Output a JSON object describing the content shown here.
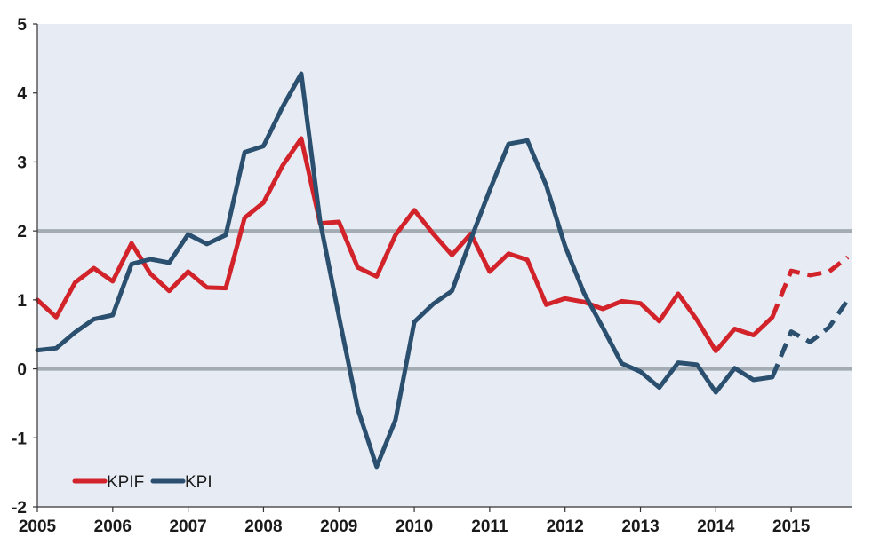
{
  "chart_data": {
    "type": "line",
    "title": "",
    "xlabel": "",
    "ylabel": "",
    "xlim": [
      2005,
      2015.8
    ],
    "ylim": [
      -2,
      5
    ],
    "x_ticks": [
      "2005",
      "2006",
      "2007",
      "2008",
      "2009",
      "2010",
      "2011",
      "2012",
      "2013",
      "2014",
      "2015"
    ],
    "y_ticks": [
      "5",
      "4",
      "3",
      "2",
      "1",
      "0",
      "-1",
      "-2"
    ],
    "reference_lines": [
      0,
      2
    ],
    "background_color": "#e6ebf4",
    "legend": {
      "placement": "bottom-left"
    },
    "series": [
      {
        "name": "KPIF",
        "color": "#d2232a",
        "values": [
          [
            2005.0,
            1.0
          ],
          [
            2005.25,
            0.75
          ],
          [
            2005.5,
            1.25
          ],
          [
            2005.75,
            1.46
          ],
          [
            2006.0,
            1.27
          ],
          [
            2006.25,
            1.82
          ],
          [
            2006.5,
            1.38
          ],
          [
            2006.75,
            1.13
          ],
          [
            2007.0,
            1.41
          ],
          [
            2007.25,
            1.18
          ],
          [
            2007.5,
            1.17
          ],
          [
            2007.75,
            2.19
          ],
          [
            2008.0,
            2.41
          ],
          [
            2008.25,
            2.94
          ],
          [
            2008.5,
            3.34
          ],
          [
            2008.75,
            2.11
          ],
          [
            2009.0,
            2.13
          ],
          [
            2009.25,
            1.47
          ],
          [
            2009.5,
            1.34
          ],
          [
            2009.75,
            1.94
          ],
          [
            2010.0,
            2.3
          ],
          [
            2010.25,
            1.96
          ],
          [
            2010.5,
            1.65
          ],
          [
            2010.75,
            1.96
          ],
          [
            2011.0,
            1.41
          ],
          [
            2011.25,
            1.67
          ],
          [
            2011.5,
            1.58
          ],
          [
            2011.75,
            0.93
          ],
          [
            2012.0,
            1.02
          ],
          [
            2012.25,
            0.97
          ],
          [
            2012.5,
            0.87
          ],
          [
            2012.75,
            0.98
          ],
          [
            2013.0,
            0.95
          ],
          [
            2013.25,
            0.69
          ],
          [
            2013.5,
            1.09
          ],
          [
            2013.75,
            0.71
          ],
          [
            2014.0,
            0.26
          ],
          [
            2014.25,
            0.58
          ],
          [
            2014.5,
            0.49
          ],
          [
            2014.75,
            0.75
          ]
        ],
        "forecast": [
          [
            2014.75,
            0.75
          ],
          [
            2015.0,
            1.42
          ],
          [
            2015.25,
            1.36
          ],
          [
            2015.5,
            1.41
          ],
          [
            2015.75,
            1.62
          ]
        ]
      },
      {
        "name": "KPI",
        "color": "#2b4f6e",
        "values": [
          [
            2005.0,
            0.27
          ],
          [
            2005.25,
            0.3
          ],
          [
            2005.5,
            0.53
          ],
          [
            2005.75,
            0.72
          ],
          [
            2006.0,
            0.78
          ],
          [
            2006.25,
            1.52
          ],
          [
            2006.5,
            1.59
          ],
          [
            2006.75,
            1.54
          ],
          [
            2007.0,
            1.95
          ],
          [
            2007.25,
            1.81
          ],
          [
            2007.5,
            1.94
          ],
          [
            2007.75,
            3.14
          ],
          [
            2008.0,
            3.23
          ],
          [
            2008.25,
            3.79
          ],
          [
            2008.5,
            4.28
          ],
          [
            2008.75,
            2.14
          ],
          [
            2009.0,
            0.76
          ],
          [
            2009.25,
            -0.58
          ],
          [
            2009.5,
            -1.42
          ],
          [
            2009.75,
            -0.74
          ],
          [
            2010.0,
            0.68
          ],
          [
            2010.25,
            0.94
          ],
          [
            2010.5,
            1.13
          ],
          [
            2010.75,
            1.88
          ],
          [
            2011.0,
            2.59
          ],
          [
            2011.25,
            3.26
          ],
          [
            2011.5,
            3.31
          ],
          [
            2011.75,
            2.66
          ],
          [
            2012.0,
            1.78
          ],
          [
            2012.25,
            1.1
          ],
          [
            2012.5,
            0.6
          ],
          [
            2012.75,
            0.08
          ],
          [
            2013.0,
            -0.04
          ],
          [
            2013.25,
            -0.27
          ],
          [
            2013.5,
            0.09
          ],
          [
            2013.75,
            0.06
          ],
          [
            2014.0,
            -0.34
          ],
          [
            2014.25,
            0.01
          ],
          [
            2014.5,
            -0.16
          ],
          [
            2014.75,
            -0.12
          ]
        ],
        "forecast": [
          [
            2014.75,
            -0.12
          ],
          [
            2015.0,
            0.54
          ],
          [
            2015.25,
            0.39
          ],
          [
            2015.5,
            0.6
          ],
          [
            2015.75,
            1.0
          ]
        ]
      }
    ]
  }
}
